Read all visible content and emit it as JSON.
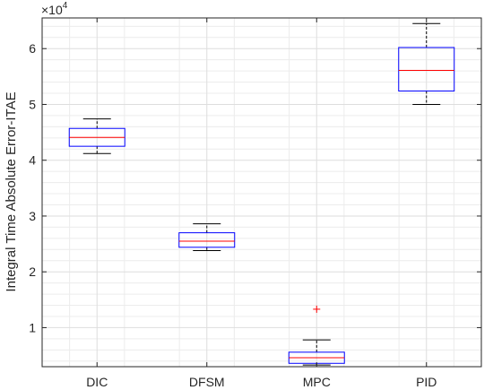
{
  "chart_data": {
    "type": "boxplot",
    "ylabel": "Integral Time Absolute Error-ITAE",
    "y_multiplier": {
      "base": "×10",
      "exponent": "4"
    },
    "ylim": [
      0.3,
      6.55
    ],
    "yticks": [
      1,
      2,
      3,
      4,
      5,
      6
    ],
    "ytick_labels": [
      "1",
      "2",
      "3",
      "4",
      "5",
      "6"
    ],
    "y_minor_step": 0.2,
    "grid": true,
    "categories": [
      "DIC",
      "DFSM",
      "MPC",
      "PID"
    ],
    "boxes": [
      {
        "category": "DIC",
        "whisker_low": 4.12,
        "q1": 4.25,
        "median": 4.41,
        "q3": 4.57,
        "whisker_high": 4.74,
        "outliers": []
      },
      {
        "category": "DFSM",
        "whisker_low": 2.38,
        "q1": 2.44,
        "median": 2.55,
        "q3": 2.7,
        "whisker_high": 2.86,
        "outliers": []
      },
      {
        "category": "MPC",
        "whisker_low": 0.33,
        "q1": 0.36,
        "median": 0.46,
        "q3": 0.56,
        "whisker_high": 0.78,
        "outliers": [
          1.33
        ]
      },
      {
        "category": "PID",
        "whisker_low": 5.0,
        "q1": 5.24,
        "median": 5.61,
        "q3": 6.02,
        "whisker_high": 6.45,
        "outliers": []
      }
    ],
    "colors": {
      "box": "#0000ff",
      "median": "#ff0000",
      "whisker": "#000000",
      "outlier": "#ff0000",
      "grid_major": "#dedede",
      "grid_minor": "#ececec"
    }
  }
}
